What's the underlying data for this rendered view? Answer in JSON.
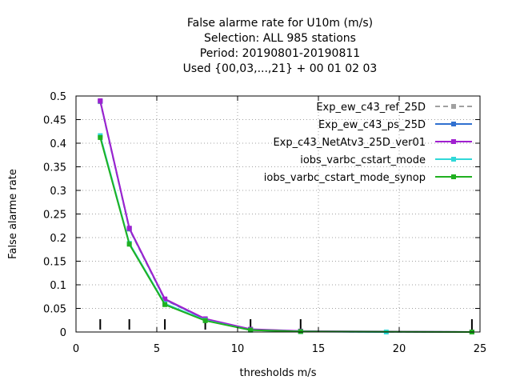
{
  "chart_data": {
    "type": "line",
    "title_lines": [
      "False alarme rate  for U10m (m/s)",
      "Selection: ALL    985 stations",
      "Period: 20190801-20190811",
      "Used {00,03,...,21} + 00 01 02 03"
    ],
    "xlabel": "thresholds m/s",
    "ylabel": "False alarme rate",
    "xlim": [
      0,
      25
    ],
    "ylim": [
      0,
      0.5
    ],
    "x_ticks": [
      "0",
      "5",
      "10",
      "15",
      "20",
      "25"
    ],
    "y_ticks": [
      "0",
      "0.05",
      "0.1",
      "0.15",
      "0.2",
      "0.25",
      "0.3",
      "0.35",
      "0.4",
      "0.45",
      "0.5"
    ],
    "grid": true,
    "legend_position": "top-right",
    "threshold_markers": [
      1.5,
      3.3,
      5.5,
      8.0,
      10.8,
      13.9,
      24.5
    ],
    "series": [
      {
        "name": "Exp_ew_c43_ref_25D",
        "color": "#a0a0a0",
        "dashed": true,
        "x": [
          1.5,
          3.3,
          5.5,
          8.0,
          10.8,
          13.9,
          24.5
        ],
        "y": [
          0.488,
          0.218,
          0.068,
          0.027,
          0.005,
          0.001,
          0.0
        ]
      },
      {
        "name": "Exp_ew_c43_ps_25D",
        "color": "#3070d0",
        "dashed": false,
        "x": [
          1.5,
          3.3,
          5.5,
          8.0,
          10.8,
          13.9,
          24.5
        ],
        "y": [
          0.489,
          0.219,
          0.069,
          0.027,
          0.005,
          0.001,
          0.0
        ]
      },
      {
        "name": "Exp_c43_NetAtv3_25D_ver01",
        "color": "#a020d0",
        "dashed": false,
        "x": [
          1.5,
          3.3,
          5.5,
          8.0,
          10.8,
          13.9,
          24.5
        ],
        "y": [
          0.49,
          0.22,
          0.07,
          0.028,
          0.006,
          0.002,
          0.0
        ]
      },
      {
        "name": "iobs_varbc_cstart_mode",
        "color": "#30d8d8",
        "dashed": false,
        "x": [
          1.5,
          3.3,
          5.5,
          8.0,
          10.8,
          13.9,
          19.2
        ],
        "y": [
          0.416,
          0.188,
          0.06,
          0.025,
          0.004,
          0.001,
          0.0
        ]
      },
      {
        "name": "iobs_varbc_cstart_mode_synop",
        "color": "#20b020",
        "dashed": false,
        "x": [
          1.5,
          3.3,
          5.5,
          8.0,
          10.8,
          13.9,
          24.5
        ],
        "y": [
          0.412,
          0.186,
          0.058,
          0.024,
          0.004,
          0.001,
          0.0
        ]
      }
    ]
  }
}
